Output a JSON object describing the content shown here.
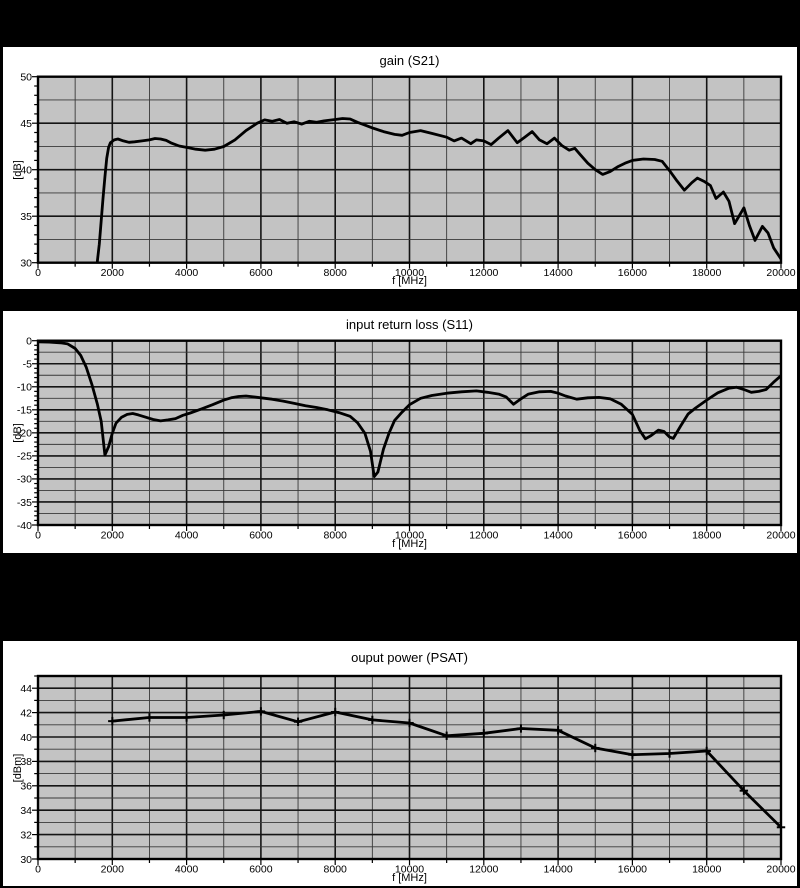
{
  "style": {
    "page_bg": "#000000",
    "panel_bg": "#ffffff",
    "plot_bg": "#c3c3c3",
    "grid_major": "#141414",
    "grid_minor": "#383838",
    "frame": "#000000",
    "line": "#000000",
    "text": "#000000"
  },
  "chart_data": [
    {
      "type": "line",
      "title": "gain (S21)",
      "xlabel": "f [MHz]",
      "ylabel": "[dB]",
      "legend": "none",
      "grid": true,
      "x_axis": {
        "min": 0,
        "max": 20000,
        "gridline_step": 1000,
        "label_step": 2000,
        "tick_labels": [
          "0",
          "2000",
          "4000",
          "6000",
          "8000",
          "10000",
          "12000",
          "14000",
          "16000",
          "18000",
          "20000"
        ]
      },
      "y_axis": {
        "min": 30,
        "max": 50,
        "gridline_minor_step": 2.5,
        "label_step": 5,
        "fine_tick_step": 1,
        "tick_labels": [
          "30",
          "35",
          "40",
          "45",
          "50"
        ]
      },
      "points": [
        [
          1560,
          28.0
        ],
        [
          1600,
          30.2
        ],
        [
          1650,
          32.0
        ],
        [
          1700,
          34.5
        ],
        [
          1750,
          36.9
        ],
        [
          1800,
          39.2
        ],
        [
          1850,
          41.2
        ],
        [
          1900,
          42.4
        ],
        [
          1950,
          42.9
        ],
        [
          2050,
          43.2
        ],
        [
          2150,
          43.3
        ],
        [
          2300,
          43.1
        ],
        [
          2450,
          42.95
        ],
        [
          2600,
          43.0
        ],
        [
          2800,
          43.1
        ],
        [
          3000,
          43.2
        ],
        [
          3150,
          43.35
        ],
        [
          3300,
          43.3
        ],
        [
          3450,
          43.15
        ],
        [
          3600,
          42.85
        ],
        [
          3800,
          42.55
        ],
        [
          4000,
          42.4
        ],
        [
          4250,
          42.2
        ],
        [
          4500,
          42.1
        ],
        [
          4750,
          42.2
        ],
        [
          5000,
          42.5
        ],
        [
          5300,
          43.2
        ],
        [
          5600,
          44.2
        ],
        [
          5900,
          45.0
        ],
        [
          6100,
          45.35
        ],
        [
          6300,
          45.2
        ],
        [
          6500,
          45.4
        ],
        [
          6700,
          45.0
        ],
        [
          6900,
          45.15
        ],
        [
          7100,
          44.9
        ],
        [
          7300,
          45.2
        ],
        [
          7500,
          45.1
        ],
        [
          7700,
          45.25
        ],
        [
          8000,
          45.4
        ],
        [
          8200,
          45.5
        ],
        [
          8400,
          45.45
        ],
        [
          8600,
          45.1
        ],
        [
          8800,
          44.8
        ],
        [
          9000,
          44.5
        ],
        [
          9300,
          44.1
        ],
        [
          9600,
          43.8
        ],
        [
          9800,
          43.7
        ],
        [
          10000,
          44.0
        ],
        [
          10300,
          44.2
        ],
        [
          10600,
          43.9
        ],
        [
          11000,
          43.5
        ],
        [
          11200,
          43.1
        ],
        [
          11400,
          43.4
        ],
        [
          11650,
          42.8
        ],
        [
          11800,
          43.2
        ],
        [
          12000,
          43.1
        ],
        [
          12200,
          42.7
        ],
        [
          12400,
          43.4
        ],
        [
          12650,
          44.2
        ],
        [
          12900,
          42.9
        ],
        [
          13100,
          43.5
        ],
        [
          13300,
          44.1
        ],
        [
          13500,
          43.2
        ],
        [
          13700,
          42.8
        ],
        [
          13900,
          43.4
        ],
        [
          14100,
          42.6
        ],
        [
          14300,
          42.1
        ],
        [
          14450,
          42.3
        ],
        [
          14600,
          41.6
        ],
        [
          14800,
          40.7
        ],
        [
          15000,
          40.0
        ],
        [
          15200,
          39.5
        ],
        [
          15400,
          39.8
        ],
        [
          15600,
          40.3
        ],
        [
          15800,
          40.7
        ],
        [
          16000,
          41.0
        ],
        [
          16300,
          41.15
        ],
        [
          16600,
          41.1
        ],
        [
          16800,
          40.9
        ],
        [
          17000,
          39.9
        ],
        [
          17200,
          38.8
        ],
        [
          17400,
          37.8
        ],
        [
          17600,
          38.6
        ],
        [
          17750,
          39.1
        ],
        [
          17950,
          38.7
        ],
        [
          18100,
          38.3
        ],
        [
          18250,
          36.9
        ],
        [
          18450,
          37.6
        ],
        [
          18600,
          36.6
        ],
        [
          18750,
          34.2
        ],
        [
          18900,
          35.2
        ],
        [
          19000,
          35.9
        ],
        [
          19150,
          34.0
        ],
        [
          19300,
          32.4
        ],
        [
          19500,
          33.9
        ],
        [
          19650,
          33.2
        ],
        [
          19800,
          31.6
        ],
        [
          20000,
          30.4
        ]
      ]
    },
    {
      "type": "line",
      "title": "input return loss (S11)",
      "xlabel": "f [MHz]",
      "ylabel": "[dB]",
      "legend": "none",
      "grid": true,
      "x_axis": {
        "min": 0,
        "max": 20000,
        "gridline_step": 1000,
        "label_step": 2000,
        "tick_labels": [
          "0",
          "2000",
          "4000",
          "6000",
          "8000",
          "10000",
          "12000",
          "14000",
          "16000",
          "18000",
          "20000"
        ]
      },
      "y_axis": {
        "min": -40,
        "max": 0,
        "gridline_minor_step": 2.5,
        "label_step": 5,
        "fine_tick_step": 1,
        "tick_labels": [
          "0",
          "-5",
          "-10",
          "-15",
          "-20",
          "-25",
          "-30",
          "-35",
          "-40"
        ]
      },
      "points": [
        [
          0,
          -0.25
        ],
        [
          300,
          -0.3
        ],
        [
          600,
          -0.45
        ],
        [
          800,
          -0.7
        ],
        [
          1000,
          -1.7
        ],
        [
          1150,
          -3.2
        ],
        [
          1300,
          -5.8
        ],
        [
          1450,
          -9.5
        ],
        [
          1600,
          -13.8
        ],
        [
          1700,
          -17.5
        ],
        [
          1800,
          -24.8
        ],
        [
          1900,
          -23.0
        ],
        [
          2000,
          -20.1
        ],
        [
          2100,
          -17.9
        ],
        [
          2250,
          -16.6
        ],
        [
          2400,
          -16.0
        ],
        [
          2550,
          -15.8
        ],
        [
          2700,
          -16.1
        ],
        [
          2900,
          -16.6
        ],
        [
          3100,
          -17.1
        ],
        [
          3300,
          -17.4
        ],
        [
          3500,
          -17.2
        ],
        [
          3700,
          -16.9
        ],
        [
          3900,
          -16.2
        ],
        [
          4100,
          -15.7
        ],
        [
          4400,
          -14.8
        ],
        [
          4700,
          -13.9
        ],
        [
          5000,
          -12.9
        ],
        [
          5200,
          -12.4
        ],
        [
          5400,
          -12.1
        ],
        [
          5600,
          -12.0
        ],
        [
          5800,
          -12.2
        ],
        [
          6000,
          -12.4
        ],
        [
          6300,
          -12.7
        ],
        [
          6600,
          -13.1
        ],
        [
          6900,
          -13.6
        ],
        [
          7200,
          -14.1
        ],
        [
          7500,
          -14.5
        ],
        [
          7800,
          -15.0
        ],
        [
          8100,
          -15.6
        ],
        [
          8400,
          -16.4
        ],
        [
          8600,
          -17.8
        ],
        [
          8800,
          -20.1
        ],
        [
          8950,
          -24.0
        ],
        [
          9050,
          -29.5
        ],
        [
          9150,
          -28.5
        ],
        [
          9300,
          -23.5
        ],
        [
          9450,
          -20.0
        ],
        [
          9600,
          -17.3
        ],
        [
          9800,
          -15.5
        ],
        [
          10000,
          -13.9
        ],
        [
          10300,
          -12.5
        ],
        [
          10600,
          -11.9
        ],
        [
          11000,
          -11.4
        ],
        [
          11400,
          -11.1
        ],
        [
          11800,
          -10.9
        ],
        [
          12100,
          -11.2
        ],
        [
          12400,
          -11.6
        ],
        [
          12600,
          -12.2
        ],
        [
          12800,
          -13.8
        ],
        [
          13000,
          -12.6
        ],
        [
          13200,
          -11.6
        ],
        [
          13500,
          -11.1
        ],
        [
          13800,
          -11.0
        ],
        [
          14000,
          -11.4
        ],
        [
          14200,
          -12.0
        ],
        [
          14500,
          -12.7
        ],
        [
          14800,
          -12.4
        ],
        [
          15100,
          -12.3
        ],
        [
          15400,
          -12.6
        ],
        [
          15700,
          -13.8
        ],
        [
          16000,
          -16.0
        ],
        [
          16200,
          -19.5
        ],
        [
          16350,
          -21.3
        ],
        [
          16500,
          -20.6
        ],
        [
          16700,
          -19.4
        ],
        [
          16850,
          -19.7
        ],
        [
          17000,
          -20.9
        ],
        [
          17100,
          -21.2
        ],
        [
          17300,
          -18.5
        ],
        [
          17500,
          -15.9
        ],
        [
          17700,
          -14.6
        ],
        [
          18000,
          -12.9
        ],
        [
          18300,
          -11.3
        ],
        [
          18600,
          -10.3
        ],
        [
          18800,
          -10.1
        ],
        [
          19000,
          -10.6
        ],
        [
          19200,
          -11.2
        ],
        [
          19400,
          -11.0
        ],
        [
          19600,
          -10.6
        ],
        [
          19800,
          -9.0
        ],
        [
          20000,
          -7.6
        ]
      ]
    },
    {
      "type": "line",
      "title": "ouput power (PSAT)",
      "xlabel": "f [MHz]",
      "ylabel": "[dBm]",
      "legend": "none",
      "grid": true,
      "marker": "plus",
      "x_axis": {
        "min": 0,
        "max": 20000,
        "gridline_step": 1000,
        "label_step": 2000,
        "tick_labels": [
          "0",
          "2000",
          "4000",
          "6000",
          "8000",
          "10000",
          "12000",
          "14000",
          "16000",
          "18000",
          "20000"
        ]
      },
      "y_axis": {
        "min": 30,
        "max": 45,
        "gridline_minor_step": 1,
        "label_step": 2,
        "fine_tick_step": 1,
        "tick_labels": [
          "30",
          "32",
          "34",
          "36",
          "38",
          "40",
          "42",
          "44"
        ]
      },
      "points": [
        [
          2000,
          41.3
        ],
        [
          3000,
          41.6
        ],
        [
          4000,
          41.6
        ],
        [
          5000,
          41.8
        ],
        [
          6000,
          42.1
        ],
        [
          7000,
          41.25
        ],
        [
          8000,
          42.05
        ],
        [
          9000,
          41.4
        ],
        [
          10000,
          41.15
        ],
        [
          11000,
          40.1
        ],
        [
          12000,
          40.3
        ],
        [
          13000,
          40.7
        ],
        [
          14000,
          40.55
        ],
        [
          15000,
          39.1
        ],
        [
          16000,
          38.55
        ],
        [
          17000,
          38.65
        ],
        [
          18000,
          38.85
        ],
        [
          19000,
          35.6
        ],
        [
          20000,
          32.6
        ]
      ]
    }
  ]
}
